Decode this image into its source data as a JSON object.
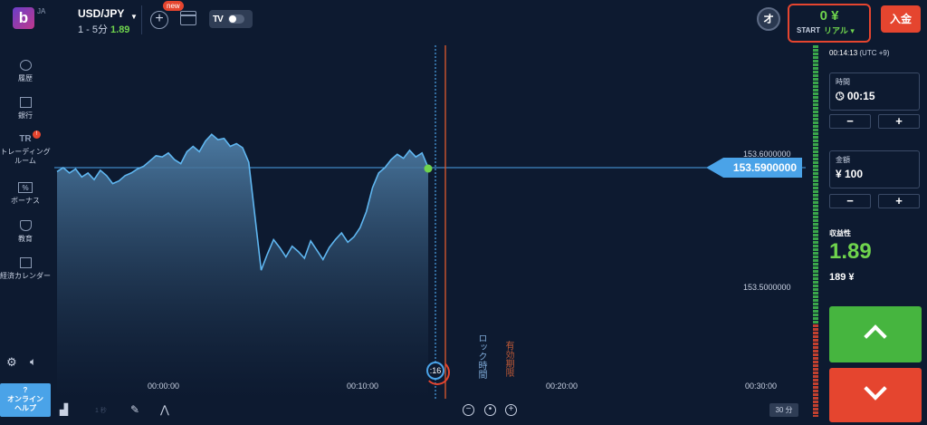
{
  "header": {
    "logo_text": "b",
    "logo_lang": "JA",
    "asset": "USD/JPY",
    "asset_sub": "1 - 5分",
    "payout": "1.89",
    "new_badge": "new",
    "tv_logo": "TV",
    "account_icon_text": "オ",
    "balance": "0 ¥",
    "balance_start": "START",
    "balance_type": "リアル ▾",
    "deposit": "入金"
  },
  "nav": {
    "items": [
      {
        "label": "履歴"
      },
      {
        "label": "銀行"
      },
      {
        "label": "トレーディング\nルーム",
        "icon": "TR",
        "alert": "!"
      },
      {
        "label": "ボーナス",
        "icon": "%"
      },
      {
        "label": "教育"
      },
      {
        "label": "経済カレンダー"
      }
    ],
    "help": "?\nオンライン\nヘルプ"
  },
  "chart": {
    "price_top": "153.6000000",
    "price_bottom": "153.5000000",
    "current_price": "153.5900000",
    "lock_label": "ロック時間",
    "expire_label": "有効期限",
    "countdown": ":16",
    "time_labels": [
      "00:00:00",
      "00:10:00",
      "00:20:00",
      "00:30:00"
    ],
    "timeframe": "30 分",
    "dim_tool_label": "1 秒"
  },
  "chart_data": {
    "type": "area",
    "title": "",
    "series": [
      {
        "values": [
          153.587,
          153.59,
          153.586,
          153.589,
          153.583,
          153.586,
          153.581,
          153.588,
          153.584,
          153.578,
          153.58,
          153.584,
          153.586,
          153.589,
          153.591,
          153.595,
          153.599,
          153.598,
          153.601,
          153.596,
          153.593,
          153.602,
          153.606,
          153.602,
          153.61,
          153.615,
          153.611,
          153.612,
          153.606,
          153.608,
          153.605,
          153.594,
          153.553,
          153.513,
          153.525,
          153.536,
          153.53,
          153.523,
          153.531,
          153.527,
          153.522,
          153.535,
          153.528,
          153.521,
          153.53,
          153.536,
          153.541,
          153.534,
          153.538,
          153.545,
          153.557,
          153.575,
          153.586,
          153.59,
          153.596,
          153.6,
          153.597,
          153.603,
          153.598,
          153.601,
          153.59
        ]
      }
    ],
    "ylim": [
      153.49,
      153.62
    ],
    "x_ticks": [
      "00:00:00",
      "00:10:00",
      "00:20:00",
      "00:30:00"
    ],
    "current_value": 153.59
  },
  "panel": {
    "clock": "00:14:13",
    "timezone": "(UTC +9)",
    "time_label": "時間",
    "time_value": "00:15",
    "amount_label": "金額",
    "amount_value": "¥ 100",
    "minus": "−",
    "plus": "+",
    "profit_label": "収益性",
    "profit_value": "1.89",
    "profit_amount": "189 ¥"
  },
  "colors": {
    "background": "#0d1a30",
    "accent_blue": "#4aa3e8",
    "green": "#6fd44d",
    "red": "#e5452f"
  }
}
